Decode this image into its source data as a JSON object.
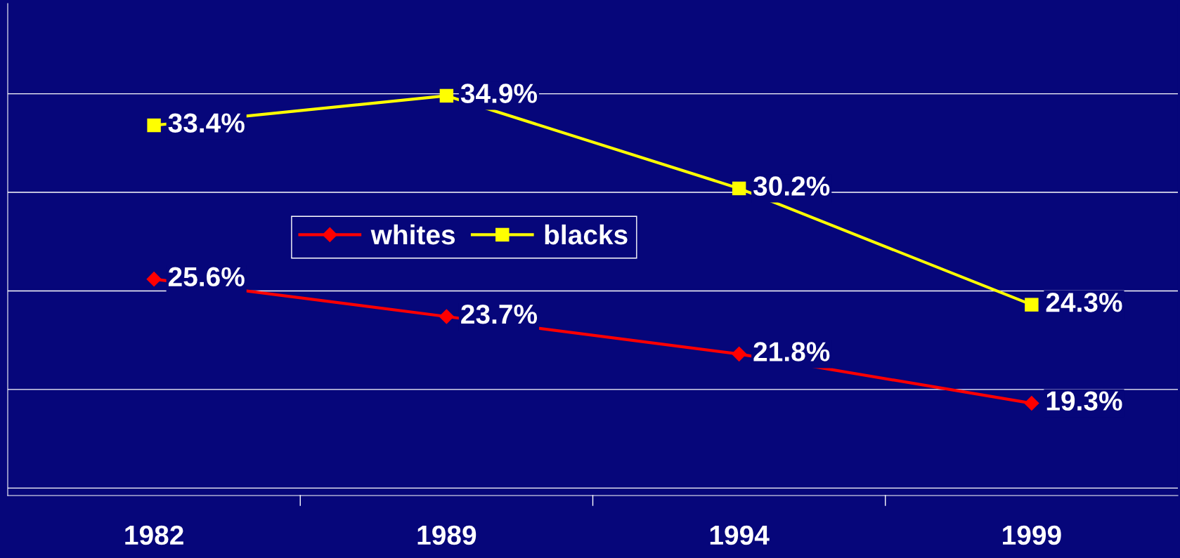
{
  "chart_data": {
    "type": "line",
    "categories": [
      "1982",
      "1989",
      "1994",
      "1999"
    ],
    "series": [
      {
        "name": "whites",
        "color": "#ff0000",
        "marker": "diamond",
        "values": [
          25.6,
          23.7,
          21.8,
          19.3
        ],
        "value_labels": [
          "25.6%",
          "23.7%",
          "21.8%",
          "19.3%"
        ]
      },
      {
        "name": "blacks",
        "color": "#ffff00",
        "marker": "square",
        "values": [
          33.4,
          34.9,
          30.2,
          24.3
        ],
        "value_labels": [
          "33.4%",
          "34.9%",
          "30.2%",
          "24.3%"
        ]
      }
    ],
    "tick_labels": "x",
    "grid": "y",
    "legend": "center left",
    "line_style": "solid"
  }
}
